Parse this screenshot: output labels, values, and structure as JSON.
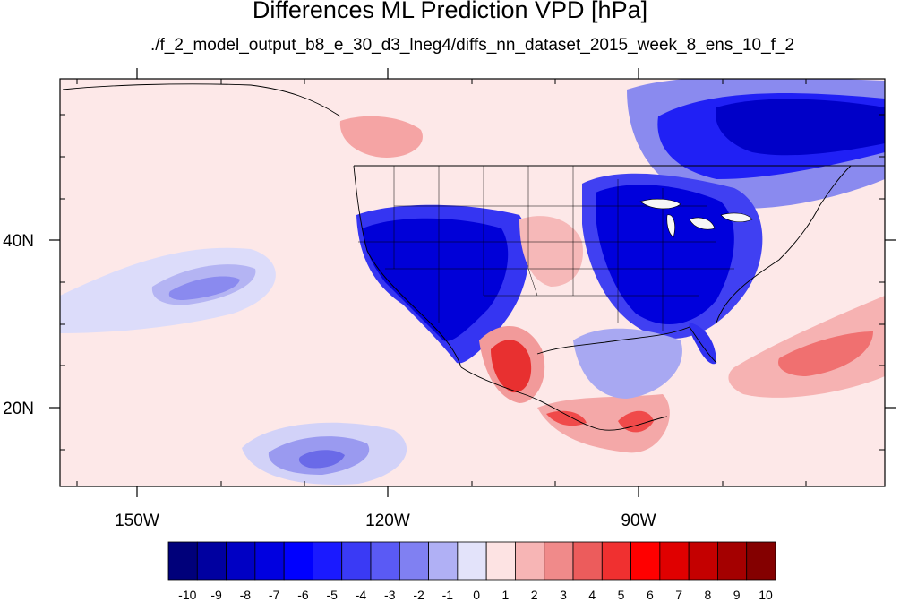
{
  "header": {
    "title": "Differences ML Prediction VPD [hPa]",
    "subtitle": "./f_2_model_output_b8_e_30_d3_lneg4/diffs_nn_dataset_2015_week_8_ens_10_f_2"
  },
  "axes": {
    "lon_ticks": [
      "150W",
      "120W",
      "90W"
    ],
    "lat_ticks": [
      "40N",
      "20N"
    ]
  },
  "colorbar": {
    "labels": [
      "-10",
      "-9",
      "-8",
      "-7",
      "-6",
      "-5",
      "-4",
      "-3",
      "-2",
      "-1",
      "0",
      "1",
      "2",
      "3",
      "4",
      "5",
      "6",
      "7",
      "8",
      "9",
      "10"
    ],
    "colors": [
      "#00007a",
      "#0000a0",
      "#0000c4",
      "#0000e0",
      "#0000ff",
      "#1a1aff",
      "#3a3af5",
      "#5a5af5",
      "#8080f2",
      "#b0b0f5",
      "#e3e3fa",
      "#fde3e3",
      "#f7b5b5",
      "#f08a8a",
      "#ec5c5c",
      "#f03030",
      "#ff0000",
      "#e00000",
      "#c40000",
      "#a40000",
      "#840000"
    ]
  },
  "colors": {
    "ocean_background": "#fde8e8",
    "coastline": "#000000"
  }
}
